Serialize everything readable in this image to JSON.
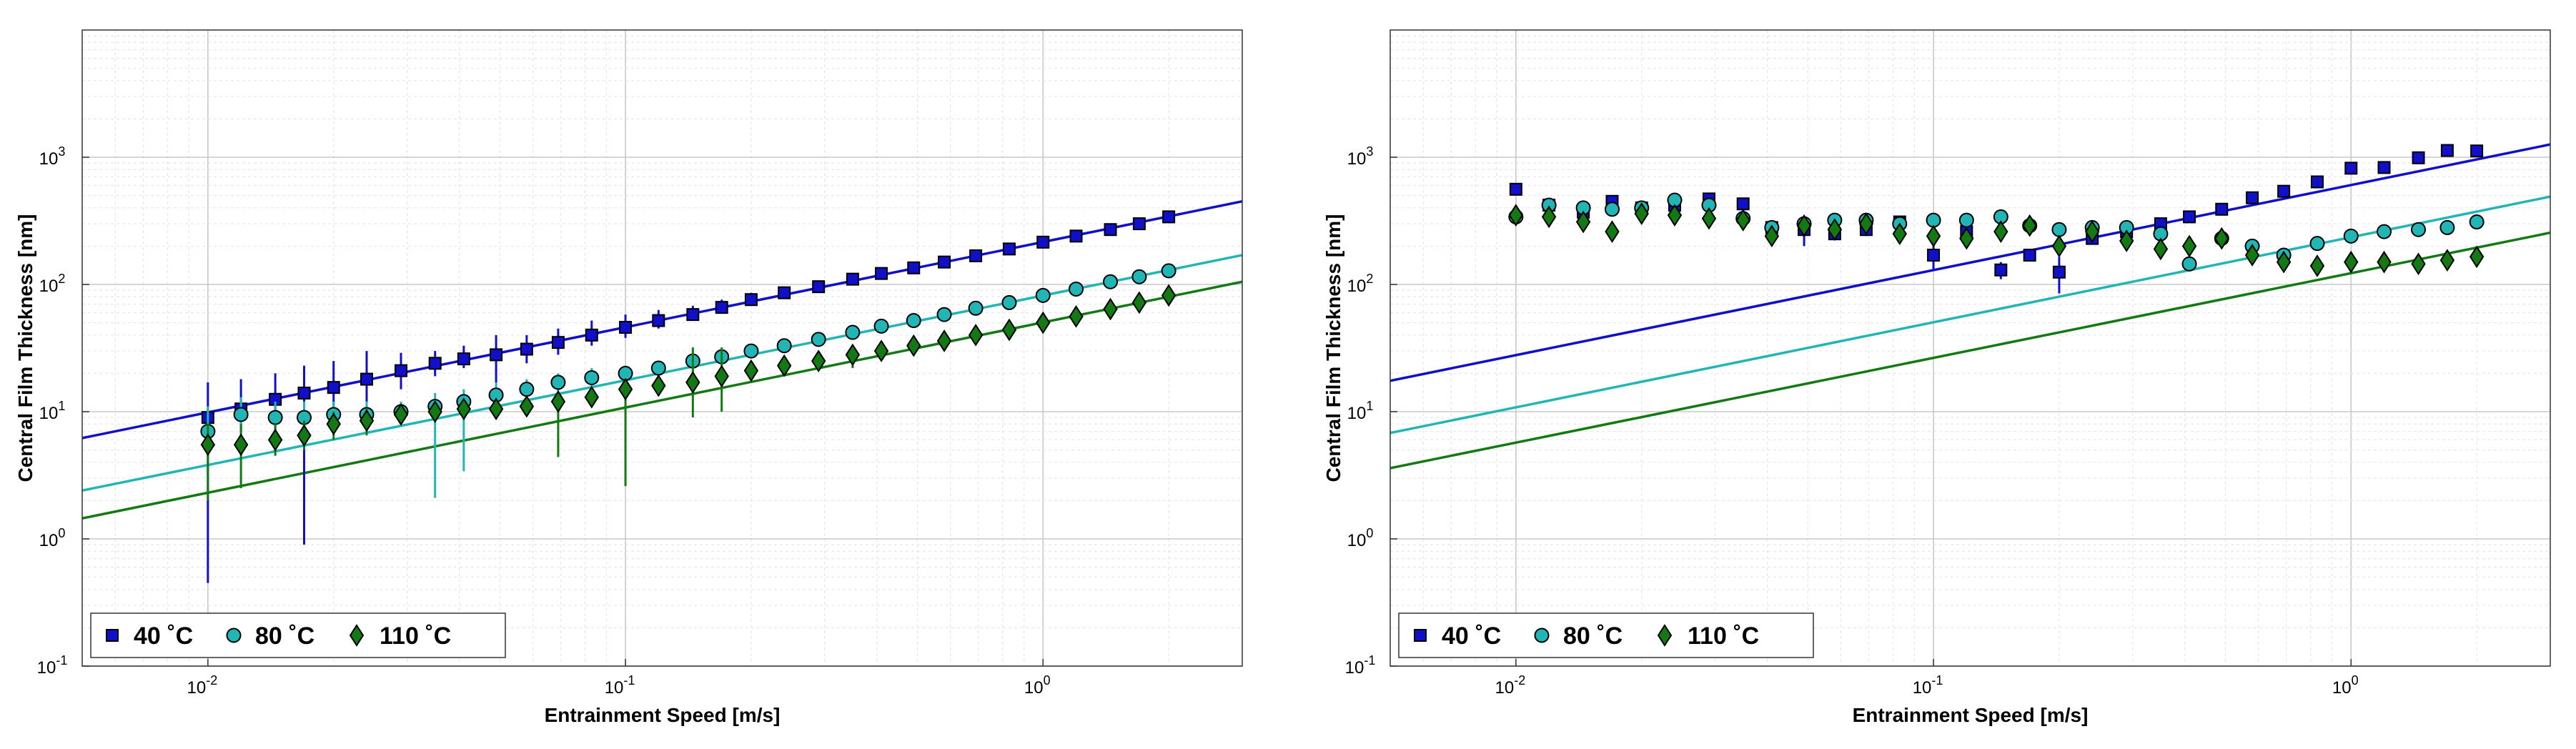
{
  "chart_data": [
    {
      "type": "scatter",
      "panel": "left",
      "xscale": "log",
      "yscale": "log",
      "xlim": [
        0.005,
        3
      ],
      "ylim": [
        0.1,
        10000
      ],
      "xlabel": "Entrainment Speed [m/s]",
      "ylabel": "Central Film Thickness [nm]",
      "grid": true,
      "legend_position": "bottom-left",
      "x_ticks": [
        {
          "v": 0.01,
          "label": "10",
          "exp": "-2"
        },
        {
          "v": 0.1,
          "label": "10",
          "exp": "-1"
        },
        {
          "v": 1,
          "label": "10",
          "exp": "0"
        }
      ],
      "y_ticks": [
        {
          "v": 0.1,
          "label": "10",
          "exp": "-1"
        },
        {
          "v": 1,
          "label": "10",
          "exp": "0"
        },
        {
          "v": 10,
          "label": "10",
          "exp": "1"
        },
        {
          "v": 100,
          "label": "10",
          "exp": "2"
        },
        {
          "v": 1000,
          "label": "10",
          "exp": "3"
        }
      ],
      "series": [
        {
          "name": "40 ˚C",
          "marker": "square",
          "color": "#1010c8",
          "x": [
            0.01,
            0.012,
            0.0145,
            0.017,
            0.02,
            0.024,
            0.029,
            0.035,
            0.041,
            0.049,
            0.058,
            0.069,
            0.083,
            0.1,
            0.12,
            0.145,
            0.17,
            0.2,
            0.24,
            0.29,
            0.35,
            0.41,
            0.49,
            0.58,
            0.69,
            0.83,
            1.0,
            1.2,
            1.45,
            1.7,
            2.0
          ],
          "y": [
            9,
            10.5,
            12.5,
            14,
            15.5,
            18,
            21,
            24,
            26,
            28,
            31,
            35,
            40,
            46,
            52,
            58,
            66,
            76,
            86,
            96,
            110,
            122,
            135,
            150,
            168,
            190,
            215,
            240,
            270,
            300,
            340
          ],
          "err_lo": [
            0.45,
            7,
            8,
            0.9,
            10,
            12,
            15,
            19,
            22,
            17,
            24,
            28,
            33,
            38,
            45,
            52,
            60,
            70,
            80,
            90,
            102,
            114,
            126,
            140,
            157,
            178,
            200,
            225,
            252,
            282,
            320
          ],
          "err_hi": [
            17,
            18,
            20,
            23,
            25,
            30,
            29,
            30,
            33,
            40,
            40,
            45,
            52,
            58,
            63,
            68,
            76,
            86,
            96,
            106,
            120,
            132,
            146,
            162,
            180,
            203,
            230,
            256,
            288,
            318,
            360
          ]
        },
        {
          "name": "80 ˚C",
          "marker": "circle",
          "color": "#22b5b5",
          "x": [
            0.01,
            0.012,
            0.0145,
            0.017,
            0.02,
            0.024,
            0.029,
            0.035,
            0.041,
            0.049,
            0.058,
            0.069,
            0.083,
            0.1,
            0.12,
            0.145,
            0.17,
            0.2,
            0.24,
            0.29,
            0.35,
            0.41,
            0.49,
            0.58,
            0.69,
            0.83,
            1.0,
            1.2,
            1.45,
            1.7,
            2.0
          ],
          "y": [
            7,
            9.5,
            9,
            9,
            9.5,
            9.5,
            10,
            11,
            12,
            13.5,
            15,
            17,
            18.5,
            20,
            22,
            25,
            27,
            30,
            33,
            37,
            42,
            47,
            52,
            58,
            65,
            72,
            82,
            92,
            105,
            115,
            128
          ],
          "err_lo": [
            3,
            7,
            7,
            7,
            7,
            7,
            8,
            2.1,
            3.4,
            10,
            12,
            14,
            15,
            17,
            19,
            22,
            24,
            27,
            30,
            34,
            38,
            43,
            48,
            54,
            61,
            68,
            77,
            87,
            99,
            109,
            122
          ],
          "err_hi": [
            11,
            13,
            12,
            12,
            12,
            12,
            12,
            14,
            15,
            17,
            18,
            20,
            22,
            23,
            25,
            30,
            31,
            34,
            37,
            41,
            46,
            51,
            56,
            62,
            69,
            76,
            87,
            97,
            111,
            121,
            134
          ]
        },
        {
          "name": "110 ˚C",
          "marker": "diamond",
          "color": "#137a13",
          "x": [
            0.01,
            0.012,
            0.0145,
            0.017,
            0.02,
            0.024,
            0.029,
            0.035,
            0.041,
            0.049,
            0.058,
            0.069,
            0.083,
            0.1,
            0.12,
            0.145,
            0.17,
            0.2,
            0.24,
            0.29,
            0.35,
            0.41,
            0.49,
            0.58,
            0.69,
            0.83,
            1.0,
            1.2,
            1.45,
            1.7,
            2.0
          ],
          "y": [
            5.5,
            5.5,
            6,
            6.5,
            8,
            8.5,
            9.5,
            10,
            10.5,
            10.5,
            11,
            12,
            13,
            15,
            16,
            17,
            19,
            21,
            23,
            25,
            28,
            30,
            33,
            36,
            40,
            44,
            50,
            56,
            64,
            72,
            82
          ],
          "err_lo": [
            2,
            2.5,
            4.5,
            5,
            6,
            6.5,
            8,
            8.5,
            9,
            9,
            9.5,
            4.4,
            11,
            2.6,
            14,
            9,
            10,
            19,
            21,
            23,
            22,
            28,
            31,
            34,
            38,
            42,
            47,
            53,
            61,
            69,
            79
          ],
          "err_hi": [
            8,
            8,
            8,
            8.5,
            10,
            10.5,
            11,
            11.5,
            12,
            12,
            13,
            14,
            15,
            17,
            18,
            32,
            32,
            23,
            25,
            27,
            31,
            32,
            35,
            38,
            42,
            46,
            53,
            59,
            67,
            75,
            85
          ]
        }
      ],
      "fits": [
        {
          "name": "40 ˚C fit",
          "color": "#1010c8",
          "y_at_xmin": 6.2,
          "y_at_xmax": 450
        },
        {
          "name": "80 ˚C fit",
          "color": "#22b5b5",
          "y_at_xmin": 2.4,
          "y_at_xmax": 170
        },
        {
          "name": "110 ˚C fit",
          "color": "#137a13",
          "y_at_xmin": 1.45,
          "y_at_xmax": 105
        }
      ],
      "legend": [
        "40 ˚C",
        "80 ˚C",
        "110 ˚C"
      ]
    },
    {
      "type": "scatter",
      "panel": "right",
      "xscale": "log",
      "yscale": "log",
      "xlim": [
        0.005,
        3
      ],
      "ylim": [
        0.1,
        10000
      ],
      "xlabel": "Entrainment Speed [m/s]",
      "ylabel": "Central Film Thickness [nm]",
      "grid": true,
      "legend_position": "bottom-left",
      "x_ticks": [
        {
          "v": 0.01,
          "label": "10",
          "exp": "-2"
        },
        {
          "v": 0.1,
          "label": "10",
          "exp": "-1"
        },
        {
          "v": 1,
          "label": "10",
          "exp": "0"
        }
      ],
      "y_ticks": [
        {
          "v": 0.1,
          "label": "10",
          "exp": "-1"
        },
        {
          "v": 1,
          "label": "10",
          "exp": "0"
        },
        {
          "v": 10,
          "label": "10",
          "exp": "1"
        },
        {
          "v": 100,
          "label": "10",
          "exp": "2"
        },
        {
          "v": 1000,
          "label": "10",
          "exp": "3"
        }
      ],
      "series": [
        {
          "name": "40 ˚C",
          "marker": "square",
          "color": "#1010c8",
          "x": [
            0.01,
            0.012,
            0.0145,
            0.017,
            0.02,
            0.024,
            0.029,
            0.035,
            0.041,
            0.049,
            0.058,
            0.069,
            0.083,
            0.1,
            0.12,
            0.145,
            0.17,
            0.2,
            0.24,
            0.29,
            0.35,
            0.41,
            0.49,
            0.58,
            0.69,
            0.83,
            1.0,
            1.2,
            1.45,
            1.7,
            2.0
          ],
          "y": [
            560,
            420,
            370,
            450,
            400,
            420,
            470,
            430,
            280,
            270,
            250,
            270,
            310,
            170,
            260,
            130,
            170,
            125,
            230,
            260,
            300,
            340,
            390,
            480,
            540,
            640,
            820,
            830,
            990,
            1130,
            1120
          ],
          "err_lo": [
            520,
            390,
            340,
            420,
            370,
            390,
            440,
            400,
            260,
            200,
            230,
            240,
            290,
            130,
            240,
            110,
            155,
            85,
            210,
            240,
            280,
            320,
            370,
            460,
            520,
            620,
            800,
            810,
            970,
            1110,
            1100
          ],
          "err_hi": [
            600,
            450,
            400,
            480,
            430,
            450,
            500,
            460,
            300,
            340,
            270,
            300,
            330,
            210,
            280,
            150,
            185,
            165,
            250,
            280,
            320,
            360,
            410,
            500,
            560,
            660,
            840,
            850,
            1010,
            1150,
            1140
          ]
        },
        {
          "name": "80 ˚C",
          "marker": "circle",
          "color": "#22b5b5",
          "x": [
            0.01,
            0.012,
            0.0145,
            0.017,
            0.02,
            0.024,
            0.029,
            0.035,
            0.041,
            0.049,
            0.058,
            0.069,
            0.083,
            0.1,
            0.12,
            0.145,
            0.17,
            0.2,
            0.24,
            0.29,
            0.35,
            0.41,
            0.49,
            0.58,
            0.69,
            0.83,
            1.0,
            1.2,
            1.45,
            1.7,
            2.0
          ],
          "y": [
            340,
            420,
            400,
            390,
            400,
            460,
            420,
            330,
            280,
            300,
            320,
            320,
            300,
            320,
            320,
            340,
            290,
            270,
            280,
            280,
            250,
            145,
            230,
            200,
            170,
            210,
            240,
            260,
            270,
            280,
            310
          ],
          "err_lo": [
            320,
            400,
            380,
            370,
            380,
            440,
            400,
            310,
            260,
            280,
            300,
            300,
            280,
            300,
            300,
            320,
            270,
            250,
            260,
            260,
            230,
            135,
            210,
            180,
            150,
            190,
            220,
            240,
            250,
            260,
            290
          ],
          "err_hi": [
            360,
            440,
            420,
            410,
            420,
            480,
            440,
            350,
            300,
            320,
            340,
            340,
            320,
            340,
            340,
            360,
            310,
            290,
            300,
            300,
            270,
            155,
            250,
            220,
            190,
            230,
            260,
            280,
            290,
            300,
            330
          ]
        },
        {
          "name": "110 ˚C",
          "marker": "diamond",
          "color": "#137a13",
          "x": [
            0.01,
            0.012,
            0.0145,
            0.017,
            0.02,
            0.024,
            0.029,
            0.035,
            0.041,
            0.049,
            0.058,
            0.069,
            0.083,
            0.1,
            0.12,
            0.145,
            0.17,
            0.2,
            0.24,
            0.29,
            0.35,
            0.41,
            0.49,
            0.58,
            0.69,
            0.83,
            1.0,
            1.2,
            1.45,
            1.7,
            2.0
          ],
          "y": [
            350,
            340,
            310,
            260,
            360,
            350,
            330,
            320,
            240,
            290,
            270,
            300,
            250,
            240,
            230,
            260,
            290,
            200,
            260,
            220,
            190,
            200,
            230,
            170,
            150,
            140,
            150,
            150,
            145,
            155,
            165
          ],
          "err_lo": [
            330,
            320,
            290,
            240,
            340,
            330,
            310,
            300,
            220,
            270,
            250,
            280,
            230,
            220,
            210,
            240,
            270,
            180,
            240,
            200,
            170,
            180,
            210,
            150,
            130,
            125,
            135,
            135,
            130,
            140,
            150
          ],
          "err_hi": [
            370,
            360,
            330,
            280,
            380,
            370,
            350,
            340,
            260,
            310,
            290,
            320,
            270,
            260,
            250,
            280,
            310,
            220,
            280,
            240,
            210,
            220,
            250,
            190,
            170,
            155,
            165,
            165,
            160,
            170,
            180
          ]
        }
      ],
      "fits": [
        {
          "name": "40 ˚C fit",
          "color": "#1010c8",
          "y_at_xmin": 17.5,
          "y_at_xmax": 1260
        },
        {
          "name": "80 ˚C fit",
          "color": "#22b5b5",
          "y_at_xmin": 6.8,
          "y_at_xmax": 490
        },
        {
          "name": "110 ˚C fit",
          "color": "#137a13",
          "y_at_xmin": 3.6,
          "y_at_xmax": 255
        }
      ],
      "legend": [
        "40 ˚C",
        "80 ˚C",
        "110 ˚C"
      ]
    }
  ]
}
